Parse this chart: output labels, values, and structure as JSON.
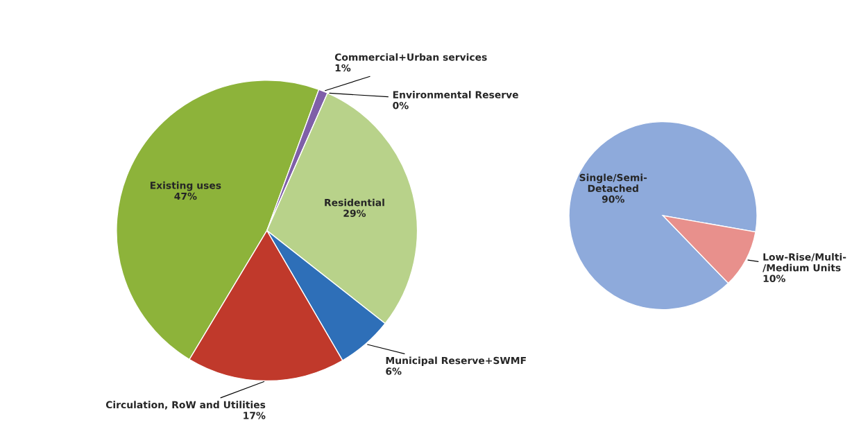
{
  "chart_data": [
    {
      "type": "pie",
      "categories": [
        "Existing uses",
        "Commercial+Urban services",
        "Environmental Reserve",
        "Residential",
        "Municipal Reserve+SWMF",
        "Circulation, RoW and Utilities"
      ],
      "values": [
        47,
        1,
        0,
        29,
        6,
        17
      ],
      "colors": [
        "#8db33a",
        "#7f5fa8",
        "#4a7ebb",
        "#b8d28a",
        "#2e6fb8",
        "#c0392b"
      ],
      "value_labels": [
        "47%",
        "1%",
        "0%",
        "29%",
        "6%",
        "17%"
      ]
    },
    {
      "type": "pie",
      "categories": [
        "Single/Semi-\nDetached",
        "Low-Rise/Multi-\n/Medium Units"
      ],
      "values": [
        90,
        10
      ],
      "colors": [
        "#8eaadb",
        "#e8908c"
      ],
      "value_labels": [
        "90%",
        "10%"
      ]
    }
  ]
}
